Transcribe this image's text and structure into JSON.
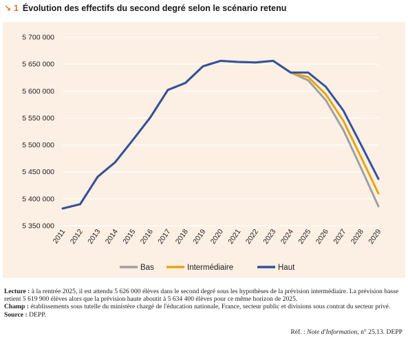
{
  "header": {
    "figure_number": "↘ 1",
    "title": "Évolution des effectifs du second degré selon le scénario retenu"
  },
  "chart_data": {
    "type": "line",
    "title": "Évolution des effectifs du second degré selon le scénario retenu",
    "x": [
      "2011",
      "2012",
      "2013",
      "2014",
      "2015",
      "2016",
      "2017",
      "2018",
      "2019",
      "2020",
      "2021",
      "2022",
      "2023",
      "2024",
      "2025",
      "2026",
      "2027",
      "2028",
      "2029"
    ],
    "y_ticks": [
      5350000,
      5400000,
      5450000,
      5500000,
      5550000,
      5600000,
      5650000,
      5700000
    ],
    "y_tick_labels": [
      "5 350 000",
      "5 400 000",
      "5 450 000",
      "5 500 000",
      "5 550 000",
      "5 600 000",
      "5 650 000",
      "5 700 000"
    ],
    "ylim": [
      5350000,
      5700000
    ],
    "grid": true,
    "legend_position": "bottom",
    "series": [
      {
        "name": "Bas",
        "color": "#a0a0a0",
        "values": [
          5382000,
          5390000,
          5441000,
          5468000,
          5509000,
          5551000,
          5602000,
          5615000,
          5646000,
          5656000,
          5654000,
          5653000,
          5656000,
          5634400,
          5619900,
          5583000,
          5528000,
          5458000,
          5386000
        ]
      },
      {
        "name": "Intermédiaire",
        "color": "#e4a70f",
        "values": [
          5382000,
          5390000,
          5441000,
          5468000,
          5509000,
          5551000,
          5602000,
          5615000,
          5646000,
          5656000,
          5654000,
          5653000,
          5656000,
          5634400,
          5626000,
          5594000,
          5545000,
          5478000,
          5410000
        ]
      },
      {
        "name": "Haut",
        "color": "#3450a0",
        "values": [
          5382000,
          5390000,
          5441000,
          5468000,
          5509000,
          5551000,
          5602000,
          5615000,
          5646000,
          5656000,
          5654000,
          5653000,
          5656000,
          5634400,
          5634400,
          5608000,
          5564000,
          5501000,
          5437000
        ]
      }
    ]
  },
  "notes": {
    "lecture_label": "Lecture :",
    "lecture_text": " à la rentrée 2025, il est attendu 5 626 000 élèves dans le second degré sous les hypothèses de la prévision intermédiaire. La prévision basse retient 5 619 900 élèves alors que la prévision haute aboutit à 5 634 400 élèves pour ce même horizon de 2025.",
    "champ_label": "Champ :",
    "champ_text": " établissements sous tutelle du ministère chargé de l'éducation nationale, France, secteur public et divisions sous contrat du secteur privé.",
    "source_label": "Source :",
    "source_text": " DEPP.",
    "ref_prefix": "Réf. : ",
    "ref_italic": "Note d'Information",
    "ref_suffix": ", n° 25.13. DEPP"
  }
}
